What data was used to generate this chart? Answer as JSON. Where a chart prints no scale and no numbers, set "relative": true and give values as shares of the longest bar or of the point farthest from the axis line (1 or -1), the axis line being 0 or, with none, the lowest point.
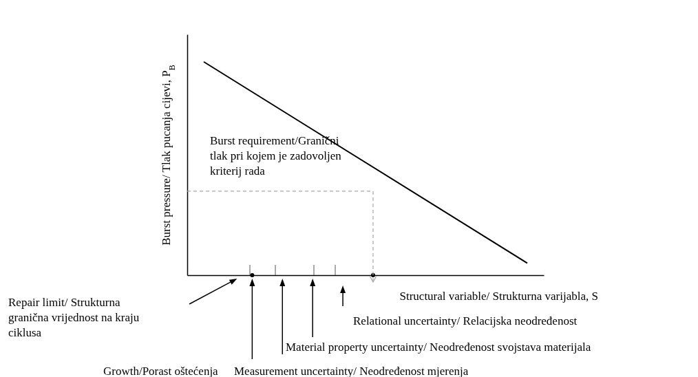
{
  "chart_data": {
    "type": "line",
    "relative": true,
    "xlabel": "Structural variable/ Strukturna varijabla, S",
    "ylabel": "Burst pressure/ Tlak pucanja cijevi, P$_{B}$",
    "categories": [
      null,
      null,
      null,
      null,
      null,
      null,
      null,
      null,
      null,
      null,
      null,
      null,
      null,
      null,
      null,
      null,
      null,
      null,
      null,
      null
    ],
    "series": [
      {
        "color": "#000000",
        "values": [
          1,
          null,
          null,
          null,
          null,
          null,
          null,
          null,
          null,
          null,
          null,
          null,
          null,
          null,
          null,
          null,
          null,
          null,
          null,
          0.058
        ]
      }
    ],
    "ref_lines": [
      {
        "axis": "y",
        "value": 0.394,
        "label": "Burst requirement/Granični tlak pri kojem je zadovoljen kriterij rada",
        "color": "#a6a6a6",
        "line_style": "dashed"
      }
    ],
    "annotations": [
      "Repair limit/  Strukturna granična vrijednost na kraju ciklusa",
      "Growth/Porast oštećenja",
      "Measurement uncertainty/  Neodređenost mjerenja",
      "Material property uncertainty/  Neodređenost svojstava materijala",
      "Relational uncertainty/  Relacijska neodređenost"
    ]
  }
}
